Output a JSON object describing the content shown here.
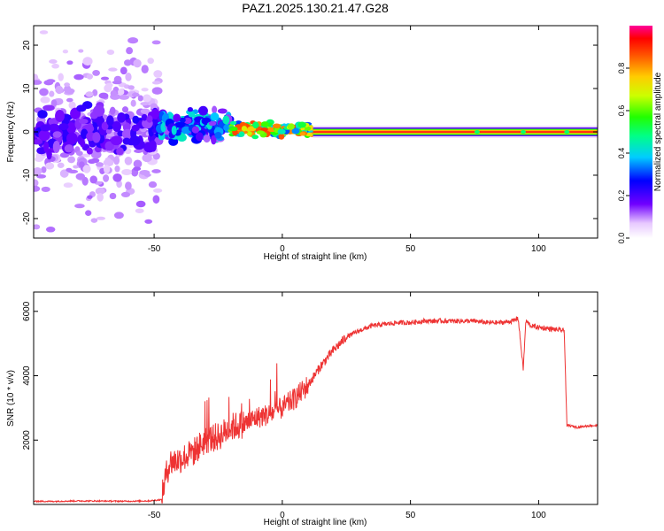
{
  "figure_title": "PAZ1.2025.130.21.47.G28",
  "chart_data": [
    {
      "type": "heatmap",
      "title": "PAZ1.2025.130.21.47.G28",
      "xlabel": "Height of straight line (km)",
      "ylabel": "Frequency (Hz)",
      "xlim": [
        -97,
        123
      ],
      "ylim": [
        -24.5,
        24.5
      ],
      "xticks": [
        -50,
        0,
        50,
        100
      ],
      "yticks": [
        -20,
        -10,
        0,
        10,
        20
      ],
      "colorbar": {
        "label": "Normalized spectral amplitude",
        "range": [
          0,
          1
        ],
        "ticks": [
          0.0,
          0.2,
          0.4,
          0.6,
          0.8
        ],
        "tick_labels": [
          "0.0",
          "0.2",
          "0.4",
          "0.6",
          "0.8"
        ]
      },
      "features": [
        {
          "x_range": [
            -97,
            -48
          ],
          "frequency_center": 0,
          "frequency_spread": 24,
          "amplitude_range": [
            0.0,
            0.2
          ]
        },
        {
          "x_range": [
            -48,
            -20
          ],
          "frequency_center": 2,
          "frequency_spread": 4,
          "amplitude_range": [
            0.1,
            0.45
          ]
        },
        {
          "x_range": [
            -20,
            12
          ],
          "frequency_center": 0.5,
          "frequency_spread": 2,
          "amplitude_range": [
            0.3,
            0.9
          ]
        },
        {
          "x_range": [
            12,
            123
          ],
          "frequency_center": 0,
          "frequency_spread": 1,
          "amplitude_range": [
            0.85,
            1.0
          ]
        }
      ]
    },
    {
      "type": "line",
      "xlabel": "Height of straight line (km)",
      "ylabel": "SNR (10 * v/v)",
      "xlim": [
        -97,
        123
      ],
      "ylim": [
        0,
        6600
      ],
      "xticks": [
        -50,
        0,
        50,
        100
      ],
      "yticks": [
        2000,
        4000,
        6000
      ],
      "color": "#ee3333",
      "series": [
        {
          "x": [
            -97,
            -90,
            -80,
            -70,
            -60,
            -52,
            -47,
            -46,
            -44,
            -40,
            -35,
            -30,
            -25,
            -20,
            -15,
            -10,
            -5,
            0,
            5,
            10,
            15,
            20,
            25,
            30,
            35,
            40,
            45,
            50,
            55,
            60,
            65,
            70,
            75,
            80,
            85,
            90,
            92,
            94,
            95,
            97,
            100,
            105,
            110,
            111,
            112,
            115,
            120,
            123
          ],
          "y": [
            100,
            95,
            110,
            105,
            100,
            110,
            150,
            700,
            1300,
            1400,
            1600,
            2000,
            2100,
            2400,
            2500,
            2700,
            2800,
            3000,
            3300,
            3700,
            4300,
            4800,
            5200,
            5400,
            5550,
            5600,
            5650,
            5650,
            5700,
            5700,
            5700,
            5700,
            5700,
            5650,
            5650,
            5700,
            5800,
            4200,
            5700,
            5550,
            5500,
            5450,
            5400,
            2450,
            2450,
            2400,
            2450,
            2450
          ]
        }
      ]
    }
  ]
}
